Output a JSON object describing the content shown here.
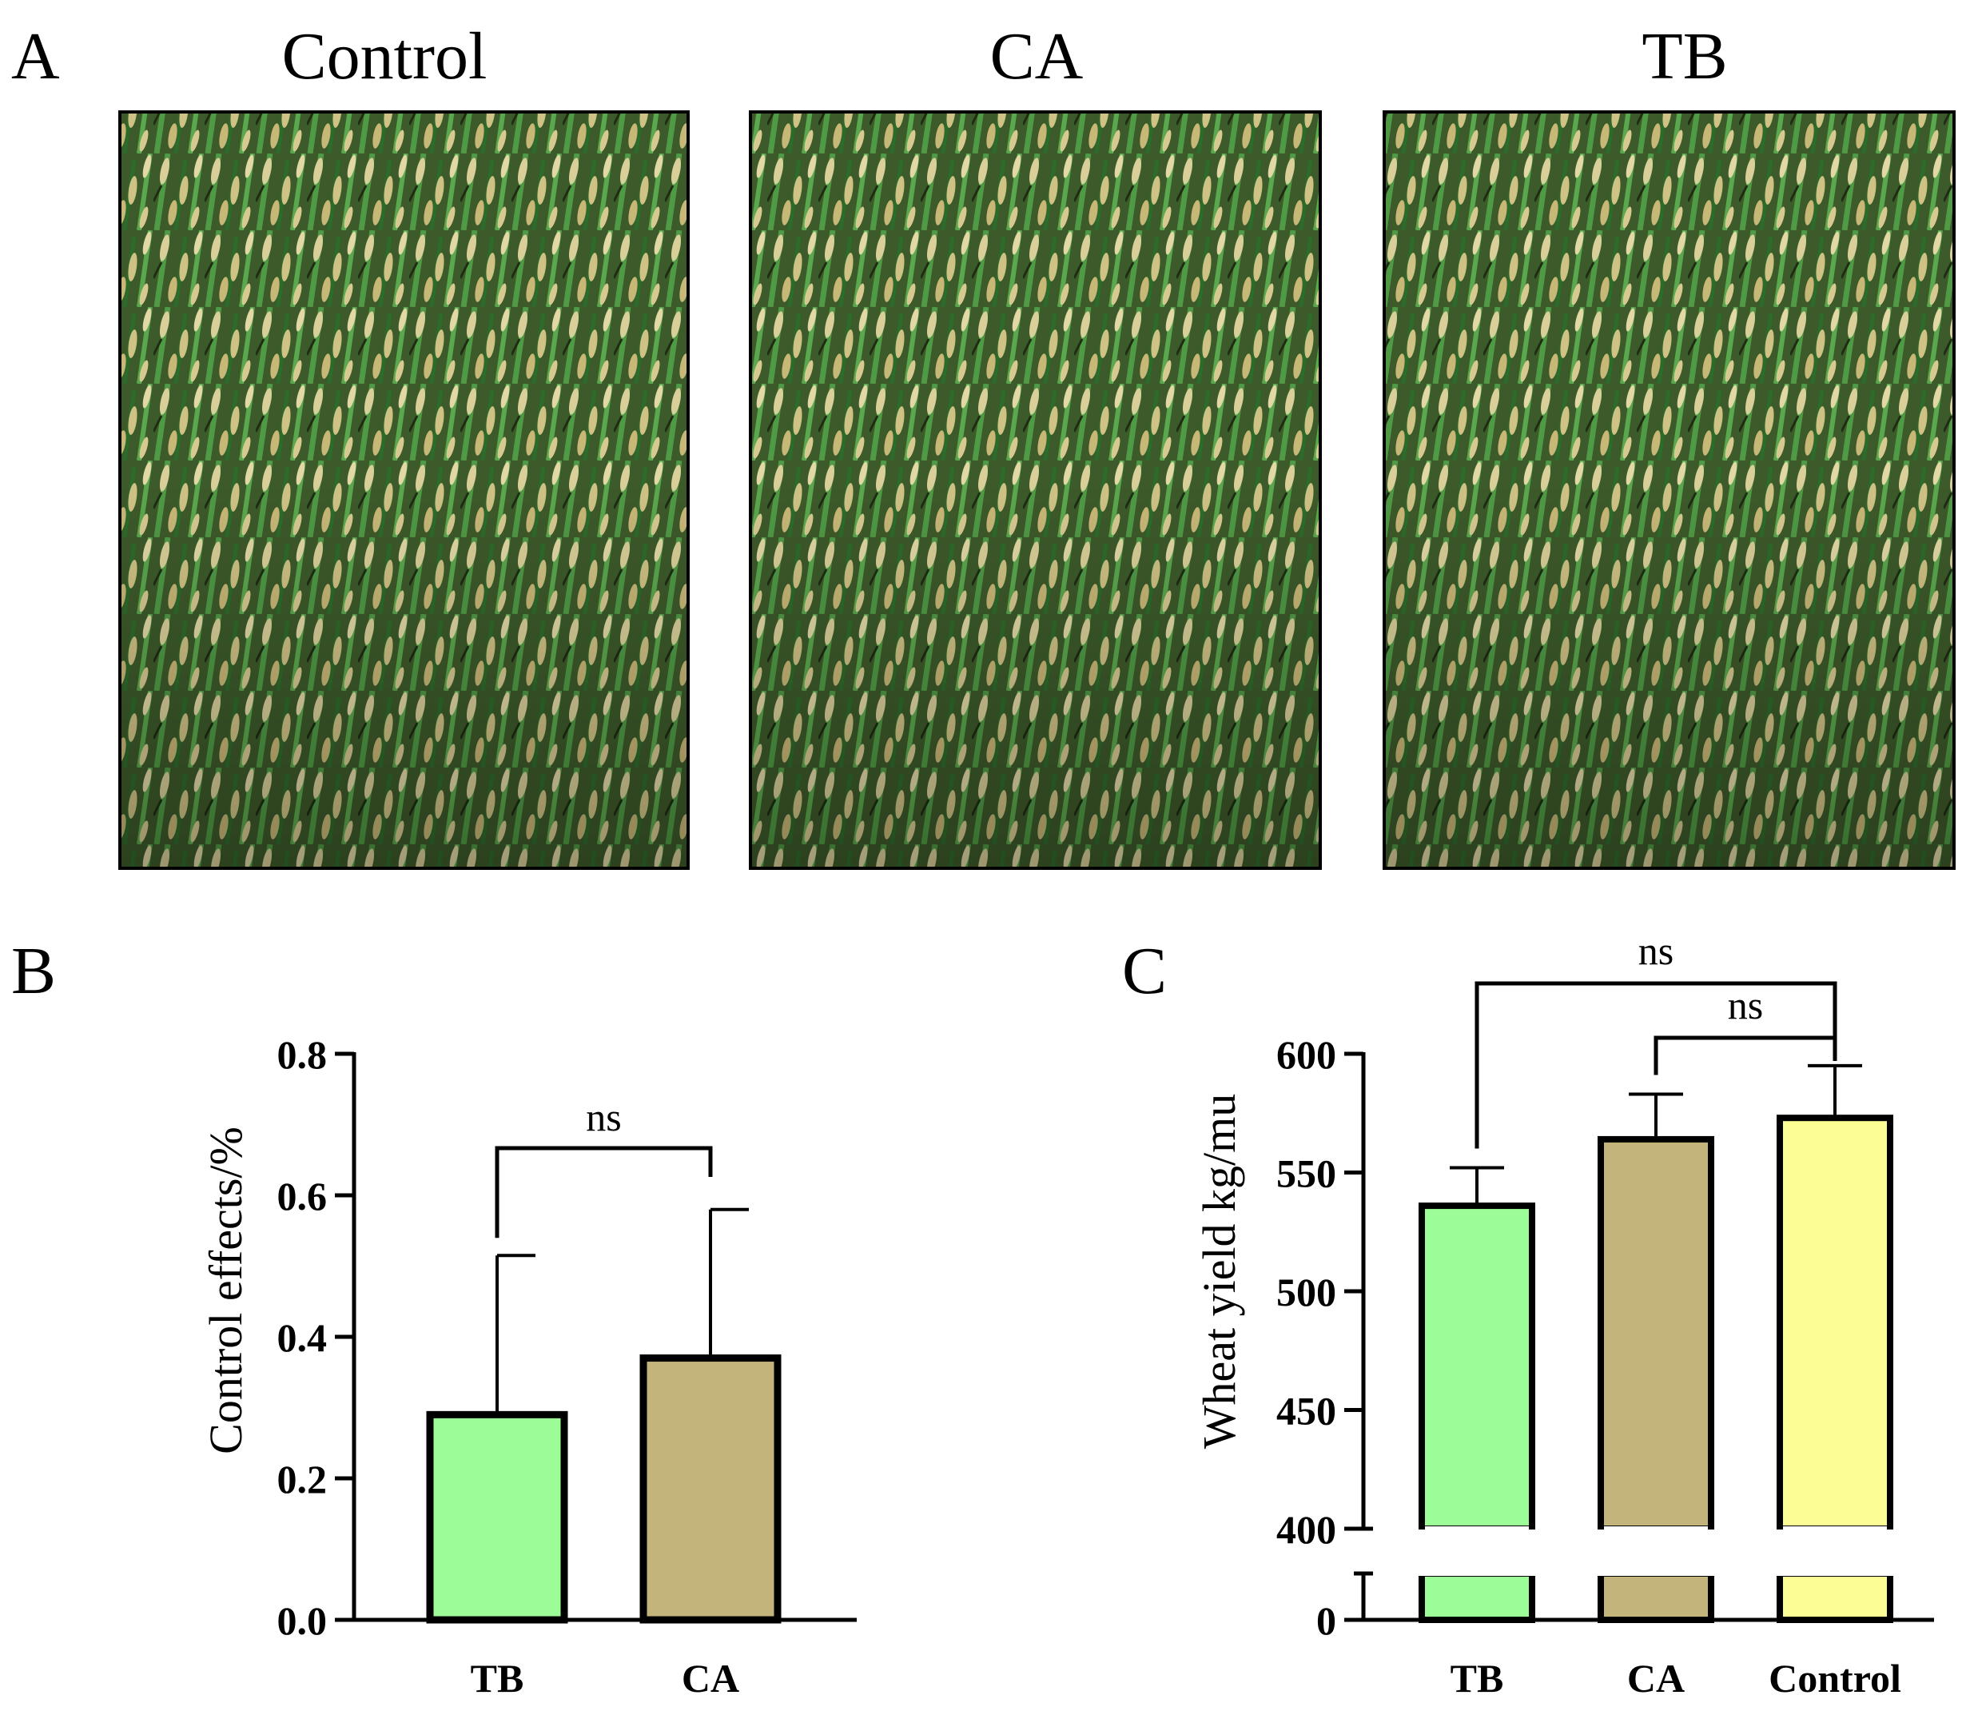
{
  "panel_a": {
    "letter": "A",
    "photos": [
      {
        "label": "Control",
        "icon": "wheat-field-photo"
      },
      {
        "label": "CA",
        "icon": "wheat-field-photo"
      },
      {
        "label": "TB",
        "icon": "wheat-field-photo"
      }
    ]
  },
  "colors": {
    "TB": "#9cfd98",
    "CA": "#c2b47a",
    "Control": "#fdfd96",
    "axis": "#000000",
    "field_dark": "#2f3a1d",
    "field_green": "#3f8a3a",
    "field_straw": "#d2c68e"
  },
  "chart_data": [
    {
      "panel": "B",
      "type": "bar",
      "title": "",
      "xlabel": "",
      "ylabel": "Control effects/%",
      "categories": [
        "TB",
        "CA"
      ],
      "values": [
        0.29,
        0.37
      ],
      "errors": [
        0.225,
        0.21
      ],
      "ylim": [
        0,
        0.8
      ],
      "yticks": [
        0.0,
        0.2,
        0.4,
        0.6,
        0.8
      ],
      "ytick_labels": [
        "0.0",
        "0.2",
        "0.4",
        "0.6",
        "0.8"
      ],
      "grid": false,
      "significance": [
        {
          "from": "TB",
          "to": "CA",
          "label": "ns"
        }
      ]
    },
    {
      "panel": "C",
      "type": "bar",
      "title": "",
      "xlabel": "",
      "ylabel": "Wheat yield kg/mu",
      "categories": [
        "TB",
        "CA",
        "Control"
      ],
      "values": [
        536,
        564,
        573
      ],
      "errors": [
        16,
        19,
        22
      ],
      "ylim": [
        400,
        600
      ],
      "axis_break": {
        "lower": [
          0,
          0
        ],
        "upper": [
          400,
          600
        ]
      },
      "yticks": [
        0,
        400,
        450,
        500,
        550,
        600
      ],
      "ytick_labels": [
        "0",
        "400",
        "450",
        "500",
        "550",
        "600"
      ],
      "grid": false,
      "significance": [
        {
          "from": "TB",
          "to": "Control",
          "label": "ns"
        },
        {
          "from": "CA",
          "to": "Control",
          "label": "ns"
        }
      ]
    }
  ]
}
